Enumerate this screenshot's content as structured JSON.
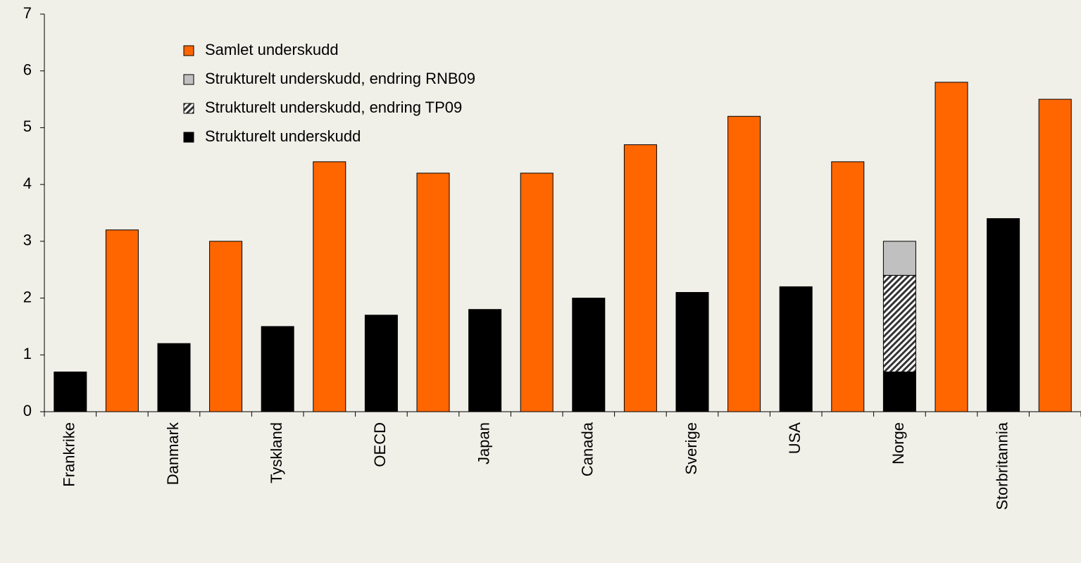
{
  "chart_data": {
    "type": "bar",
    "categories": [
      "Frankrike",
      "Danmark",
      "Tyskland",
      "OECD",
      "Japan",
      "Canada",
      "Sverige",
      "USA",
      "Norge",
      "Storbritannia"
    ],
    "series": [
      {
        "name": "Strukturelt underskudd",
        "color": "#000000",
        "stacked": true,
        "values": [
          0.7,
          1.2,
          1.5,
          1.7,
          1.8,
          2.0,
          2.1,
          2.2,
          0.7,
          3.4
        ]
      },
      {
        "name": "Strukturelt underskudd, endring TP09",
        "color": "hatch",
        "stacked": true,
        "values": [
          null,
          null,
          null,
          null,
          null,
          null,
          null,
          null,
          1.7,
          null
        ]
      },
      {
        "name": "Strukturelt underskudd, endring RNB09",
        "color": "#c0c0c0",
        "stacked": true,
        "values": [
          null,
          null,
          null,
          null,
          null,
          null,
          null,
          null,
          0.6,
          null
        ]
      },
      {
        "name": "Samlet underskudd",
        "color": "#ff6600",
        "stacked": false,
        "values": [
          3.2,
          3.0,
          4.4,
          4.2,
          4.2,
          4.7,
          5.2,
          4.4,
          5.8,
          5.5
        ]
      }
    ],
    "ylim": [
      0,
      7
    ],
    "yticks": [
      0,
      1,
      2,
      3,
      4,
      5,
      6,
      7
    ]
  }
}
